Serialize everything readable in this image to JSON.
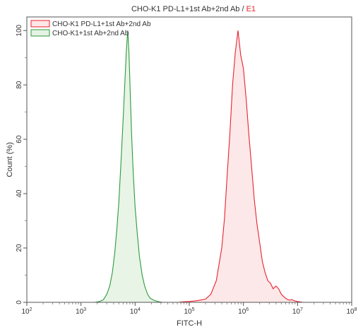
{
  "chart_data": {
    "type": "area",
    "title": "CHO-K1 PD-L1+1st Ab+2nd Ab / ",
    "title_gate": "E1",
    "xlabel": "FITC-H",
    "ylabel": "Count (%)",
    "x_scale": "log",
    "xlim": [
      100,
      100000000
    ],
    "ylim": [
      0,
      105
    ],
    "x_ticks": [
      {
        "value": 100,
        "base": "10",
        "exp": "2"
      },
      {
        "value": 1000,
        "base": "10",
        "exp": "3"
      },
      {
        "value": 10000,
        "base": "10",
        "exp": "4"
      },
      {
        "value": 100000,
        "base": "10",
        "exp": "5"
      },
      {
        "value": 1000000,
        "base": "10",
        "exp": "6"
      },
      {
        "value": 10000000,
        "base": "10",
        "exp": "7"
      },
      {
        "value": 100000000,
        "base": "10",
        "exp": "8"
      }
    ],
    "y_ticks": [
      "0",
      "20",
      "40",
      "60",
      "80",
      "100"
    ],
    "grid": false,
    "legend_position": "top-left",
    "series": [
      {
        "name": "CHO-K1 PD-L1+1st Ab+2nd Ab",
        "color": "#e8232f",
        "fill": "#fde6e7",
        "x": [
          63000,
          79000,
          100000,
          126000,
          158000,
          200000,
          251000,
          316000,
          398000,
          447000,
          501000,
          562000,
          631000,
          708000,
          794000,
          891000,
          1000000,
          1122000,
          1259000,
          1413000,
          1585000,
          1778000,
          1995000,
          2239000,
          2512000,
          2818000,
          3162000,
          3548000,
          3981000,
          4467000,
          5012000,
          5623000,
          6310000,
          7079000,
          7943000,
          8913000,
          10000000,
          12600000
        ],
        "values": [
          0,
          0.2,
          0.3,
          0.5,
          0.8,
          1.2,
          3,
          8,
          20,
          31,
          47,
          62,
          80,
          92,
          100,
          91,
          86,
          75,
          62,
          50,
          38,
          29,
          22,
          15,
          11,
          8,
          7,
          5,
          6,
          5,
          3,
          2,
          1.2,
          0.8,
          1,
          0.5,
          0.3,
          0
        ]
      },
      {
        "name": "CHO-K1+1st Ab+2nd Ab",
        "color": "#2e9a3e",
        "fill": "#e4f3e3",
        "x": [
          1800,
          2200,
          2600,
          3000,
          3400,
          3800,
          4200,
          4600,
          5000,
          5500,
          6000,
          6500,
          6900,
          7300,
          7700,
          8100,
          8600,
          9200,
          10000,
          11000,
          12000,
          13500,
          15000,
          17000,
          19000,
          22000,
          26000,
          32000
        ],
        "values": [
          0,
          0.3,
          1,
          3,
          6,
          11,
          18,
          27,
          37,
          52,
          67,
          82,
          93,
          100,
          92,
          78,
          62,
          48,
          35,
          25,
          17,
          10,
          6,
          3,
          1.5,
          0.8,
          0.3,
          0
        ]
      }
    ]
  }
}
